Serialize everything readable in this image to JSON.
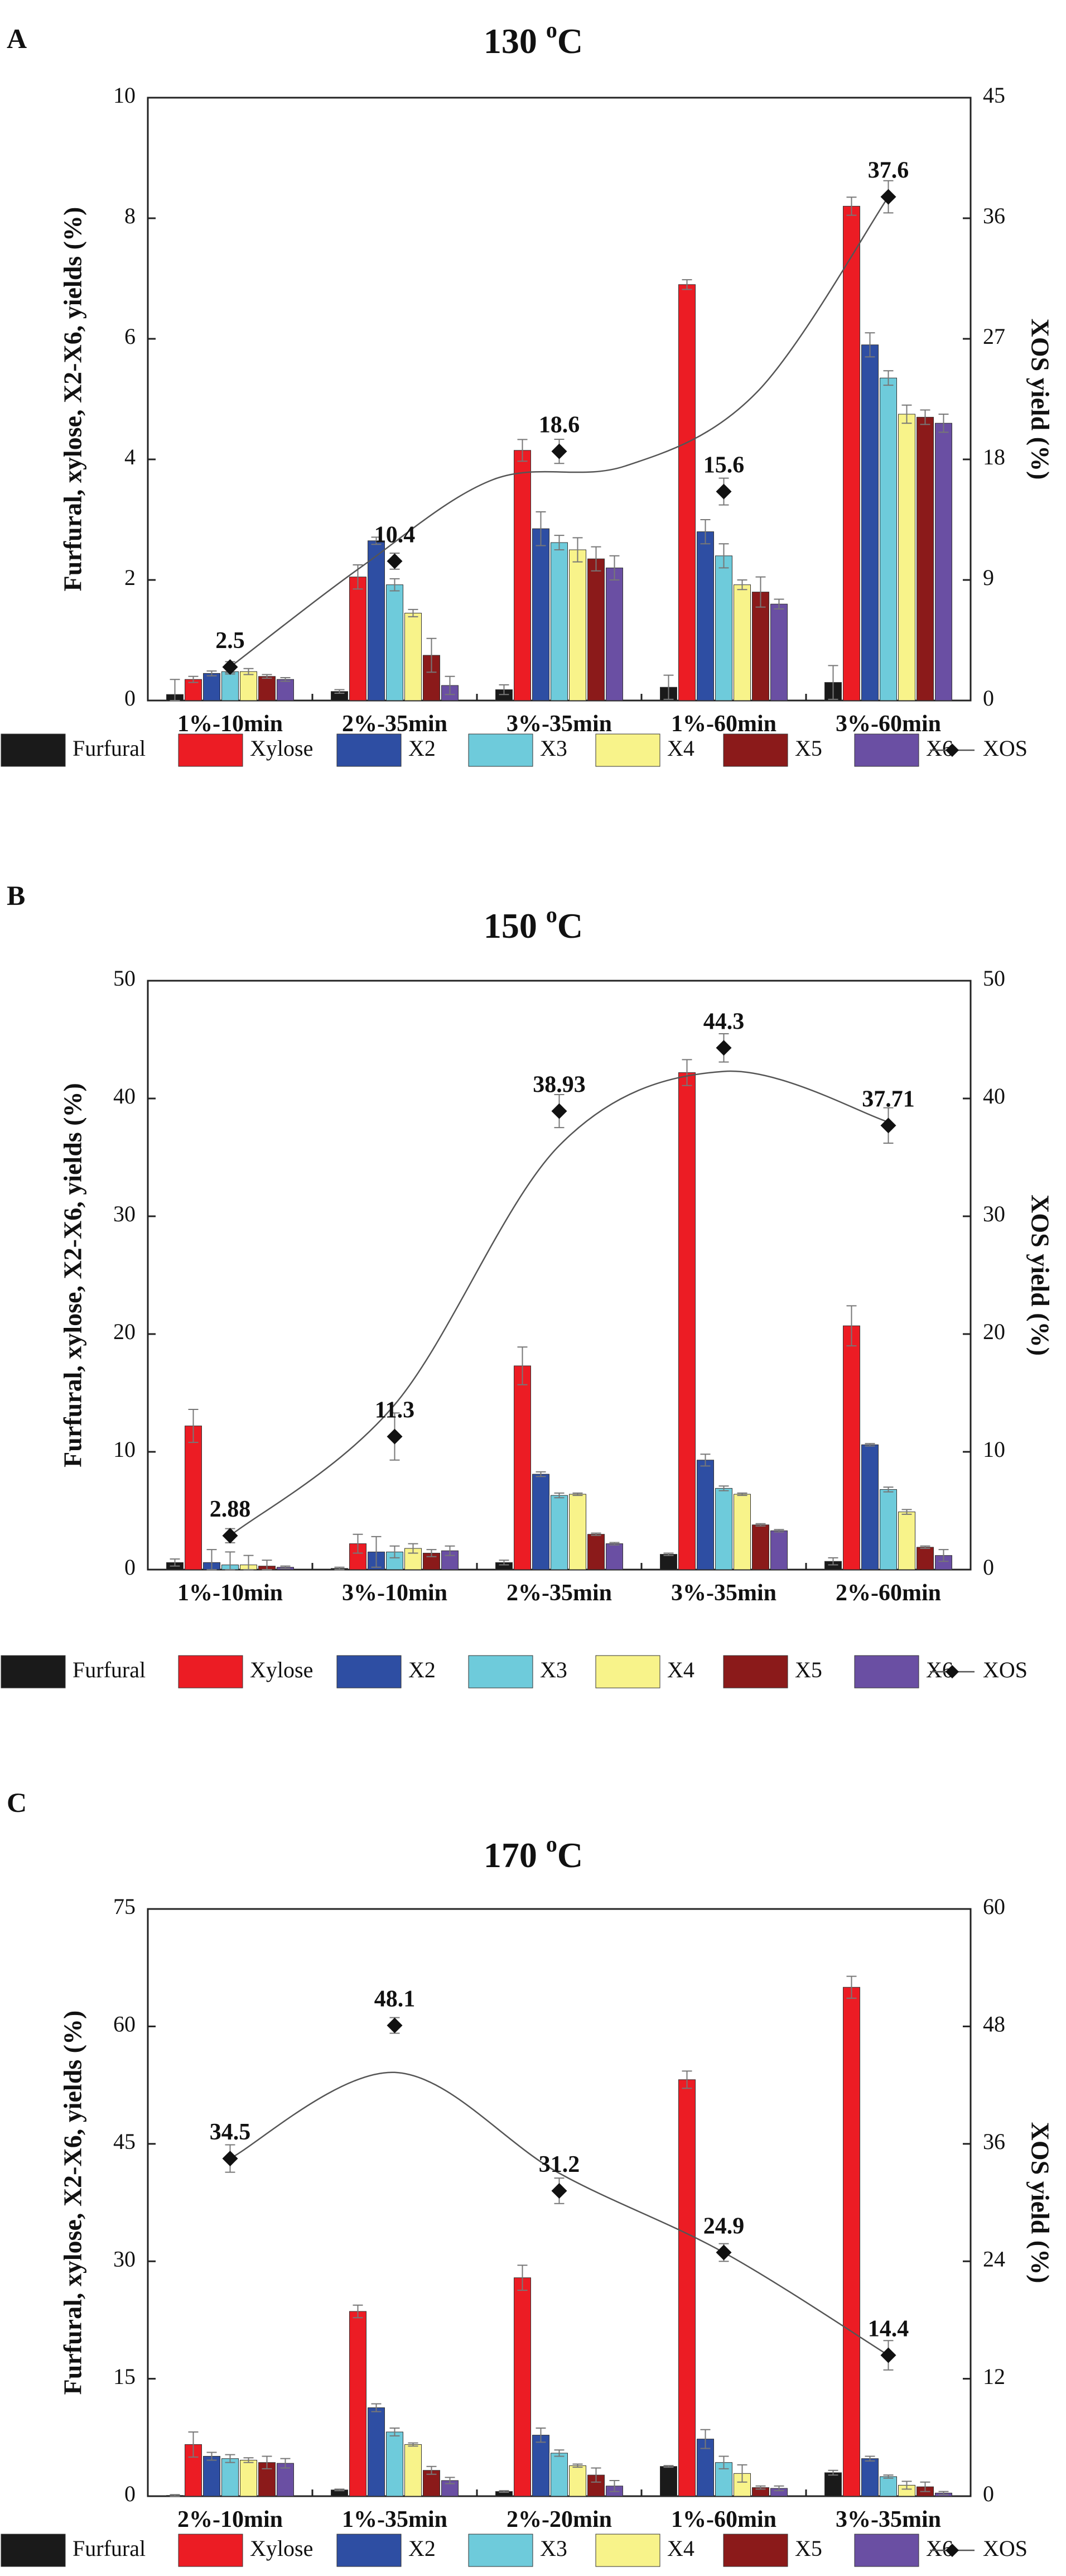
{
  "chart_data": [
    {
      "type": "bar",
      "panel_label": "A",
      "title": {
        "main": "130 ",
        "sup": "o",
        "unit": "C"
      },
      "categories": [
        "1%-10min",
        "2%-35min",
        "3%-35min",
        "1%-60min",
        "3%-60min"
      ],
      "ylabel": "Furfural, xylose, X2-X6, yields (%)",
      "y2label": "XOS yield (%)",
      "ylim": [
        0,
        10
      ],
      "yticks": [
        "0",
        "2",
        "4",
        "6",
        "8",
        "10"
      ],
      "y2lim": [
        0,
        45
      ],
      "y2ticks": [
        "0",
        "9",
        "18",
        "27",
        "36",
        "45"
      ],
      "series": [
        {
          "name": "Furfural",
          "color": "#1a1a1a",
          "values": [
            0.1,
            0.15,
            0.18,
            0.22,
            0.3
          ],
          "errors": [
            0.25,
            0.03,
            0.08,
            0.2,
            0.28
          ]
        },
        {
          "name": "Xylose",
          "color": "#ec1c24",
          "values": [
            0.35,
            2.05,
            4.15,
            6.9,
            8.2
          ],
          "errors": [
            0.05,
            0.2,
            0.18,
            0.08,
            0.15
          ]
        },
        {
          "name": "X2",
          "color": "#2e4ea3",
          "values": [
            0.45,
            2.65,
            2.85,
            2.8,
            5.9
          ],
          "errors": [
            0.04,
            0.06,
            0.28,
            0.2,
            0.2
          ]
        },
        {
          "name": "X3",
          "color": "#6ecbdb",
          "values": [
            0.48,
            1.92,
            2.62,
            2.4,
            5.35
          ],
          "errors": [
            0.04,
            0.1,
            0.12,
            0.2,
            0.12
          ]
        },
        {
          "name": "X4",
          "color": "#f8f38a",
          "values": [
            0.48,
            1.45,
            2.5,
            1.92,
            4.75
          ],
          "errors": [
            0.05,
            0.06,
            0.2,
            0.08,
            0.15
          ]
        },
        {
          "name": "X5",
          "color": "#8b1a1a",
          "values": [
            0.4,
            0.75,
            2.35,
            1.8,
            4.7
          ],
          "errors": [
            0.03,
            0.28,
            0.2,
            0.25,
            0.12
          ]
        },
        {
          "name": "X6",
          "color": "#6a4fa3",
          "values": [
            0.35,
            0.25,
            2.2,
            1.6,
            4.6
          ],
          "errors": [
            0.03,
            0.15,
            0.2,
            0.08,
            0.15
          ]
        }
      ],
      "xos": {
        "name": "XOS",
        "values": [
          2.5,
          10.4,
          18.6,
          15.6,
          37.6
        ],
        "labels": [
          "2.5",
          "10.4",
          "18.6",
          "15.6",
          "37.6"
        ],
        "errors": [
          0.4,
          0.6,
          0.9,
          1.0,
          1.2
        ],
        "curve": [
          2.5,
          10.0,
          16.5,
          17.5,
          23.0,
          37.6
        ]
      }
    },
    {
      "type": "bar",
      "panel_label": "B",
      "title": {
        "main": "150 ",
        "sup": "o",
        "unit": "C"
      },
      "categories": [
        "1%-10min",
        "3%-10min",
        "2%-35min",
        "3%-35min",
        "2%-60min"
      ],
      "ylabel": "Furfural, xylose, X2-X6, yields (%)",
      "y2label": "XOS yield (%)",
      "ylim": [
        0,
        50
      ],
      "yticks": [
        "0",
        "10",
        "20",
        "30",
        "40",
        "50"
      ],
      "y2lim": [
        0,
        50
      ],
      "y2ticks": [
        "0",
        "10",
        "20",
        "30",
        "40",
        "50"
      ],
      "series": [
        {
          "name": "Furfural",
          "color": "#1a1a1a",
          "values": [
            0.6,
            0.1,
            0.6,
            1.3,
            0.7
          ],
          "errors": [
            0.3,
            0.1,
            0.2,
            0.1,
            0.3
          ]
        },
        {
          "name": "Xylose",
          "color": "#ec1c24",
          "values": [
            12.2,
            2.2,
            17.3,
            42.2,
            20.7
          ],
          "errors": [
            1.4,
            0.8,
            1.6,
            1.1,
            1.7
          ]
        },
        {
          "name": "X2",
          "color": "#2e4ea3",
          "values": [
            0.6,
            1.5,
            8.1,
            9.3,
            10.6
          ],
          "errors": [
            1.1,
            1.3,
            0.2,
            0.5,
            0.1
          ]
        },
        {
          "name": "X3",
          "color": "#6ecbdb",
          "values": [
            0.4,
            1.5,
            6.3,
            6.9,
            6.8
          ],
          "errors": [
            1.1,
            0.5,
            0.2,
            0.2,
            0.2
          ]
        },
        {
          "name": "X4",
          "color": "#f8f38a",
          "values": [
            0.4,
            1.8,
            6.4,
            6.4,
            4.9
          ],
          "errors": [
            0.8,
            0.4,
            0.1,
            0.1,
            0.2
          ]
        },
        {
          "name": "X5",
          "color": "#8b1a1a",
          "values": [
            0.3,
            1.4,
            3.0,
            3.8,
            1.9
          ],
          "errors": [
            0.5,
            0.3,
            0.1,
            0.1,
            0.1
          ]
        },
        {
          "name": "X6",
          "color": "#6a4fa3",
          "values": [
            0.2,
            1.6,
            2.2,
            3.3,
            1.2
          ],
          "errors": [
            0.1,
            0.4,
            0.1,
            0.1,
            0.5
          ]
        }
      ],
      "xos": {
        "name": "XOS",
        "values": [
          2.88,
          11.3,
          38.93,
          44.3,
          37.71
        ],
        "labels": [
          "2.88",
          "11.3",
          "38.93",
          "44.3",
          "37.71"
        ],
        "errors": [
          0.6,
          2.0,
          1.4,
          1.2,
          1.5
        ],
        "curve": [
          2.88,
          14.0,
          36.0,
          42.3,
          38.0
        ]
      }
    },
    {
      "type": "bar",
      "panel_label": "C",
      "title": {
        "main": "170 ",
        "sup": "o",
        "unit": "C"
      },
      "categories": [
        "2%-10min",
        "1%-35min",
        "2%-20min",
        "1%-60min",
        "3%-35min"
      ],
      "ylabel": "Furfural, xylose, X2-X6, yields (%)",
      "y2label": "XOS yield (%)",
      "ylim": [
        0,
        75
      ],
      "yticks": [
        "0",
        "15",
        "30",
        "45",
        "60",
        "75"
      ],
      "y2lim": [
        0,
        60
      ],
      "y2ticks": [
        "0",
        "12",
        "24",
        "36",
        "48",
        "60"
      ],
      "series": [
        {
          "name": "Furfural",
          "color": "#1a1a1a",
          "values": [
            0.1,
            0.8,
            0.6,
            3.8,
            3.0
          ],
          "errors": [
            0.1,
            0.1,
            0.1,
            0.1,
            0.3
          ]
        },
        {
          "name": "Xylose",
          "color": "#ec1c24",
          "values": [
            6.6,
            23.6,
            27.9,
            53.2,
            65.0
          ],
          "errors": [
            1.6,
            0.8,
            1.6,
            1.1,
            1.4
          ]
        },
        {
          "name": "X2",
          "color": "#2e4ea3",
          "values": [
            5.1,
            11.3,
            7.8,
            7.3,
            4.8
          ],
          "errors": [
            0.5,
            0.5,
            0.9,
            1.2,
            0.3
          ]
        },
        {
          "name": "X3",
          "color": "#6ecbdb",
          "values": [
            4.8,
            8.2,
            5.5,
            4.3,
            2.5
          ],
          "errors": [
            0.5,
            0.5,
            0.4,
            0.8,
            0.2
          ]
        },
        {
          "name": "X4",
          "color": "#f8f38a",
          "values": [
            4.6,
            6.6,
            3.9,
            2.9,
            1.4
          ],
          "errors": [
            0.3,
            0.2,
            0.2,
            1.1,
            0.5
          ]
        },
        {
          "name": "X5",
          "color": "#8b1a1a",
          "values": [
            4.3,
            3.3,
            2.7,
            1.1,
            1.2
          ],
          "errors": [
            0.8,
            0.5,
            0.9,
            0.2,
            0.6
          ]
        },
        {
          "name": "X6",
          "color": "#6a4fa3",
          "values": [
            4.2,
            2.0,
            1.3,
            1.0,
            0.4
          ],
          "errors": [
            0.6,
            0.4,
            0.7,
            0.3,
            0.2
          ]
        }
      ],
      "xos": {
        "name": "XOS",
        "values": [
          34.5,
          48.1,
          31.2,
          24.9,
          14.4
        ],
        "labels": [
          "34.5",
          "48.1",
          "31.2",
          "24.9",
          "14.4"
        ],
        "errors": [
          1.4,
          0.8,
          1.3,
          0.9,
          1.5
        ],
        "curve": [
          34.5,
          43.3,
          33.0,
          24.9,
          14.4
        ]
      }
    }
  ]
}
